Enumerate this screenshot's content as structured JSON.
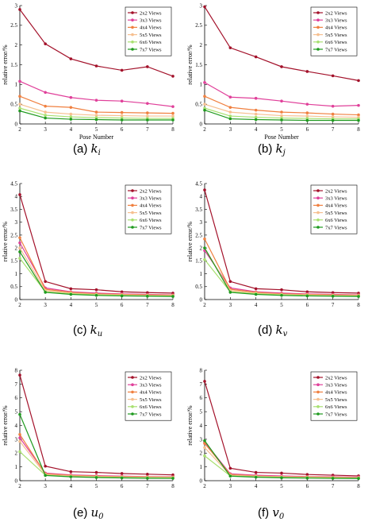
{
  "chart_data": [
    {
      "type": "line",
      "caption": {
        "prefix": "(a)",
        "symbol": "k",
        "sub": "i"
      },
      "xlabel": "Pose Number",
      "ylabel": "relative error/%",
      "x": [
        2,
        3,
        4,
        5,
        6,
        7,
        8
      ],
      "xlim": [
        2,
        8
      ],
      "ylim": [
        0,
        3
      ],
      "yticks": [
        "0",
        "0.5",
        "1",
        "1.5",
        "2",
        "2.5",
        "3"
      ],
      "xticks": [
        "2",
        "3",
        "4",
        "5",
        "6",
        "7",
        "8"
      ],
      "legend_position": "top-right",
      "series": [
        {
          "name": "2x2 Views",
          "color": "#a3112a",
          "values": [
            2.9,
            2.03,
            1.65,
            1.47,
            1.36,
            1.45,
            1.21
          ]
        },
        {
          "name": "3x3 Views",
          "color": "#e0409a",
          "values": [
            1.08,
            0.8,
            0.67,
            0.6,
            0.58,
            0.52,
            0.44
          ]
        },
        {
          "name": "4x4 Views",
          "color": "#f08040",
          "values": [
            0.7,
            0.45,
            0.42,
            0.3,
            0.29,
            0.28,
            0.27
          ]
        },
        {
          "name": "5x5 Views",
          "color": "#f6c090",
          "values": [
            0.5,
            0.3,
            0.25,
            0.22,
            0.21,
            0.2,
            0.2
          ]
        },
        {
          "name": "6x6 Views",
          "color": "#a8e070",
          "values": [
            0.4,
            0.22,
            0.18,
            0.16,
            0.15,
            0.14,
            0.14
          ]
        },
        {
          "name": "7x7 Views",
          "color": "#1f9a1f",
          "values": [
            0.33,
            0.15,
            0.12,
            0.11,
            0.1,
            0.1,
            0.1
          ]
        }
      ]
    },
    {
      "type": "line",
      "caption": {
        "prefix": "(b)",
        "symbol": "k",
        "sub": "j"
      },
      "xlabel": "Pose Number",
      "ylabel": "relative error/%",
      "x": [
        2,
        3,
        4,
        5,
        6,
        7,
        8
      ],
      "xlim": [
        2,
        8
      ],
      "ylim": [
        0,
        3
      ],
      "yticks": [
        "0",
        "0.5",
        "1",
        "1.5",
        "2",
        "2.5",
        "3"
      ],
      "xticks": [
        "2",
        "3",
        "4",
        "5",
        "6",
        "7",
        "8"
      ],
      "legend_position": "top-right",
      "series": [
        {
          "name": "2x2 Views",
          "color": "#a3112a",
          "values": [
            2.97,
            1.93,
            1.7,
            1.45,
            1.33,
            1.22,
            1.1
          ]
        },
        {
          "name": "3x3 Views",
          "color": "#e0409a",
          "values": [
            1.05,
            0.68,
            0.65,
            0.58,
            0.5,
            0.45,
            0.47
          ]
        },
        {
          "name": "4x4 Views",
          "color": "#f08040",
          "values": [
            0.7,
            0.42,
            0.35,
            0.3,
            0.28,
            0.25,
            0.23
          ]
        },
        {
          "name": "5x5 Views",
          "color": "#f6c090",
          "values": [
            0.5,
            0.3,
            0.25,
            0.21,
            0.2,
            0.18,
            0.17
          ]
        },
        {
          "name": "6x6 Views",
          "color": "#a8e070",
          "values": [
            0.4,
            0.2,
            0.17,
            0.15,
            0.14,
            0.13,
            0.13
          ]
        },
        {
          "name": "7x7 Views",
          "color": "#1f9a1f",
          "values": [
            0.35,
            0.13,
            0.11,
            0.1,
            0.09,
            0.09,
            0.09
          ]
        }
      ]
    },
    {
      "type": "line",
      "caption": {
        "prefix": "(c)",
        "symbol": "k",
        "sub": "u"
      },
      "xlabel": "",
      "ylabel": "relative error/%",
      "x": [
        2,
        3,
        4,
        5,
        6,
        7,
        8
      ],
      "xlim": [
        2,
        8
      ],
      "ylim": [
        0,
        4.5
      ],
      "yticks": [
        "0",
        "0.5",
        "1",
        "1.5",
        "2",
        "2.5",
        "3",
        "3.5",
        "4",
        "4.5"
      ],
      "xticks": [
        "2",
        "3",
        "4",
        "5",
        "6",
        "7",
        "8"
      ],
      "legend_position": "top-right",
      "series": [
        {
          "name": "2x2 Views",
          "color": "#a3112a",
          "values": [
            4.07,
            0.7,
            0.42,
            0.38,
            0.3,
            0.27,
            0.25
          ]
        },
        {
          "name": "3x3 Views",
          "color": "#e0409a",
          "values": [
            2.2,
            0.45,
            0.3,
            0.25,
            0.22,
            0.2,
            0.18
          ]
        },
        {
          "name": "4x4 Views",
          "color": "#f08040",
          "values": [
            2.4,
            0.4,
            0.28,
            0.22,
            0.2,
            0.18,
            0.17
          ]
        },
        {
          "name": "5x5 Views",
          "color": "#f6c090",
          "values": [
            2.0,
            0.35,
            0.25,
            0.2,
            0.18,
            0.16,
            0.15
          ]
        },
        {
          "name": "6x6 Views",
          "color": "#a8e070",
          "values": [
            1.6,
            0.3,
            0.22,
            0.18,
            0.16,
            0.14,
            0.13
          ]
        },
        {
          "name": "7x7 Views",
          "color": "#1f9a1f",
          "values": [
            1.85,
            0.28,
            0.2,
            0.16,
            0.14,
            0.13,
            0.12
          ]
        }
      ]
    },
    {
      "type": "line",
      "caption": {
        "prefix": "(d)",
        "symbol": "k",
        "sub": "v"
      },
      "xlabel": "",
      "ylabel": "relative error/%",
      "x": [
        2,
        3,
        4,
        5,
        6,
        7,
        8
      ],
      "xlim": [
        2,
        8
      ],
      "ylim": [
        0,
        4.5
      ],
      "yticks": [
        "0",
        "0.5",
        "1",
        "1.5",
        "2",
        "2.5",
        "3",
        "3.5",
        "4",
        "4.5"
      ],
      "xticks": [
        "2",
        "3",
        "4",
        "5",
        "6",
        "7",
        "8"
      ],
      "legend_position": "top-right",
      "series": [
        {
          "name": "2x2 Views",
          "color": "#a3112a",
          "values": [
            4.25,
            0.7,
            0.42,
            0.38,
            0.3,
            0.27,
            0.25
          ]
        },
        {
          "name": "3x3 Views",
          "color": "#e0409a",
          "values": [
            1.9,
            0.45,
            0.3,
            0.25,
            0.22,
            0.2,
            0.18
          ]
        },
        {
          "name": "4x4 Views",
          "color": "#f08040",
          "values": [
            2.35,
            0.4,
            0.28,
            0.22,
            0.2,
            0.18,
            0.17
          ]
        },
        {
          "name": "5x5 Views",
          "color": "#f6c090",
          "values": [
            2.0,
            0.35,
            0.25,
            0.2,
            0.18,
            0.16,
            0.15
          ]
        },
        {
          "name": "6x6 Views",
          "color": "#a8e070",
          "values": [
            1.55,
            0.3,
            0.22,
            0.18,
            0.16,
            0.14,
            0.13
          ]
        },
        {
          "name": "7x7 Views",
          "color": "#1f9a1f",
          "values": [
            2.0,
            0.28,
            0.2,
            0.16,
            0.14,
            0.13,
            0.12
          ]
        }
      ]
    },
    {
      "type": "line",
      "caption": {
        "prefix": "(e)",
        "symbol": "u",
        "sub": "0"
      },
      "xlabel": "",
      "ylabel": "relative error/%",
      "x": [
        2,
        3,
        4,
        5,
        6,
        7,
        8
      ],
      "xlim": [
        2,
        8
      ],
      "ylim": [
        0,
        8
      ],
      "yticks": [
        "0",
        "1",
        "2",
        "3",
        "4",
        "5",
        "6",
        "7",
        "8"
      ],
      "xticks": [
        "2",
        "3",
        "4",
        "5",
        "6",
        "7",
        "8"
      ],
      "legend_position": "top-right",
      "series": [
        {
          "name": "2x2 Views",
          "color": "#a3112a",
          "values": [
            7.65,
            1.05,
            0.65,
            0.6,
            0.52,
            0.47,
            0.42
          ]
        },
        {
          "name": "3x3 Views",
          "color": "#e0409a",
          "values": [
            3.1,
            0.55,
            0.42,
            0.37,
            0.33,
            0.3,
            0.28
          ]
        },
        {
          "name": "4x4 Views",
          "color": "#f08040",
          "values": [
            3.35,
            0.5,
            0.38,
            0.33,
            0.3,
            0.28,
            0.26
          ]
        },
        {
          "name": "5x5 Views",
          "color": "#f6c090",
          "values": [
            2.85,
            0.45,
            0.35,
            0.3,
            0.27,
            0.25,
            0.23
          ]
        },
        {
          "name": "6x6 Views",
          "color": "#a8e070",
          "values": [
            2.1,
            0.4,
            0.3,
            0.26,
            0.23,
            0.21,
            0.2
          ]
        },
        {
          "name": "7x7 Views",
          "color": "#1f9a1f",
          "values": [
            4.8,
            0.38,
            0.28,
            0.23,
            0.2,
            0.18,
            0.17
          ]
        }
      ]
    },
    {
      "type": "line",
      "caption": {
        "prefix": "(f)",
        "symbol": "v",
        "sub": "0"
      },
      "xlabel": "",
      "ylabel": "relative error/%",
      "x": [
        2,
        3,
        4,
        5,
        6,
        7,
        8
      ],
      "xlim": [
        2,
        8
      ],
      "ylim": [
        0,
        8
      ],
      "yticks": [
        "0",
        "1",
        "2",
        "3",
        "4",
        "5",
        "6",
        "7",
        "8"
      ],
      "xticks": [
        "2",
        "3",
        "4",
        "5",
        "6",
        "7",
        "8"
      ],
      "legend_position": "top-right",
      "series": [
        {
          "name": "2x2 Views",
          "color": "#a3112a",
          "values": [
            7.2,
            0.9,
            0.6,
            0.55,
            0.45,
            0.4,
            0.35
          ]
        },
        {
          "name": "3x3 Views",
          "color": "#e0409a",
          "values": [
            2.8,
            0.5,
            0.4,
            0.35,
            0.3,
            0.28,
            0.26
          ]
        },
        {
          "name": "4x4 Views",
          "color": "#f08040",
          "values": [
            2.7,
            0.45,
            0.35,
            0.3,
            0.28,
            0.25,
            0.23
          ]
        },
        {
          "name": "5x5 Views",
          "color": "#f6c090",
          "values": [
            2.4,
            0.4,
            0.32,
            0.28,
            0.25,
            0.22,
            0.21
          ]
        },
        {
          "name": "6x6 Views",
          "color": "#a8e070",
          "values": [
            1.8,
            0.35,
            0.28,
            0.24,
            0.22,
            0.2,
            0.19
          ]
        },
        {
          "name": "7x7 Views",
          "color": "#1f9a1f",
          "values": [
            2.9,
            0.33,
            0.25,
            0.21,
            0.19,
            0.17,
            0.16
          ]
        }
      ]
    }
  ]
}
